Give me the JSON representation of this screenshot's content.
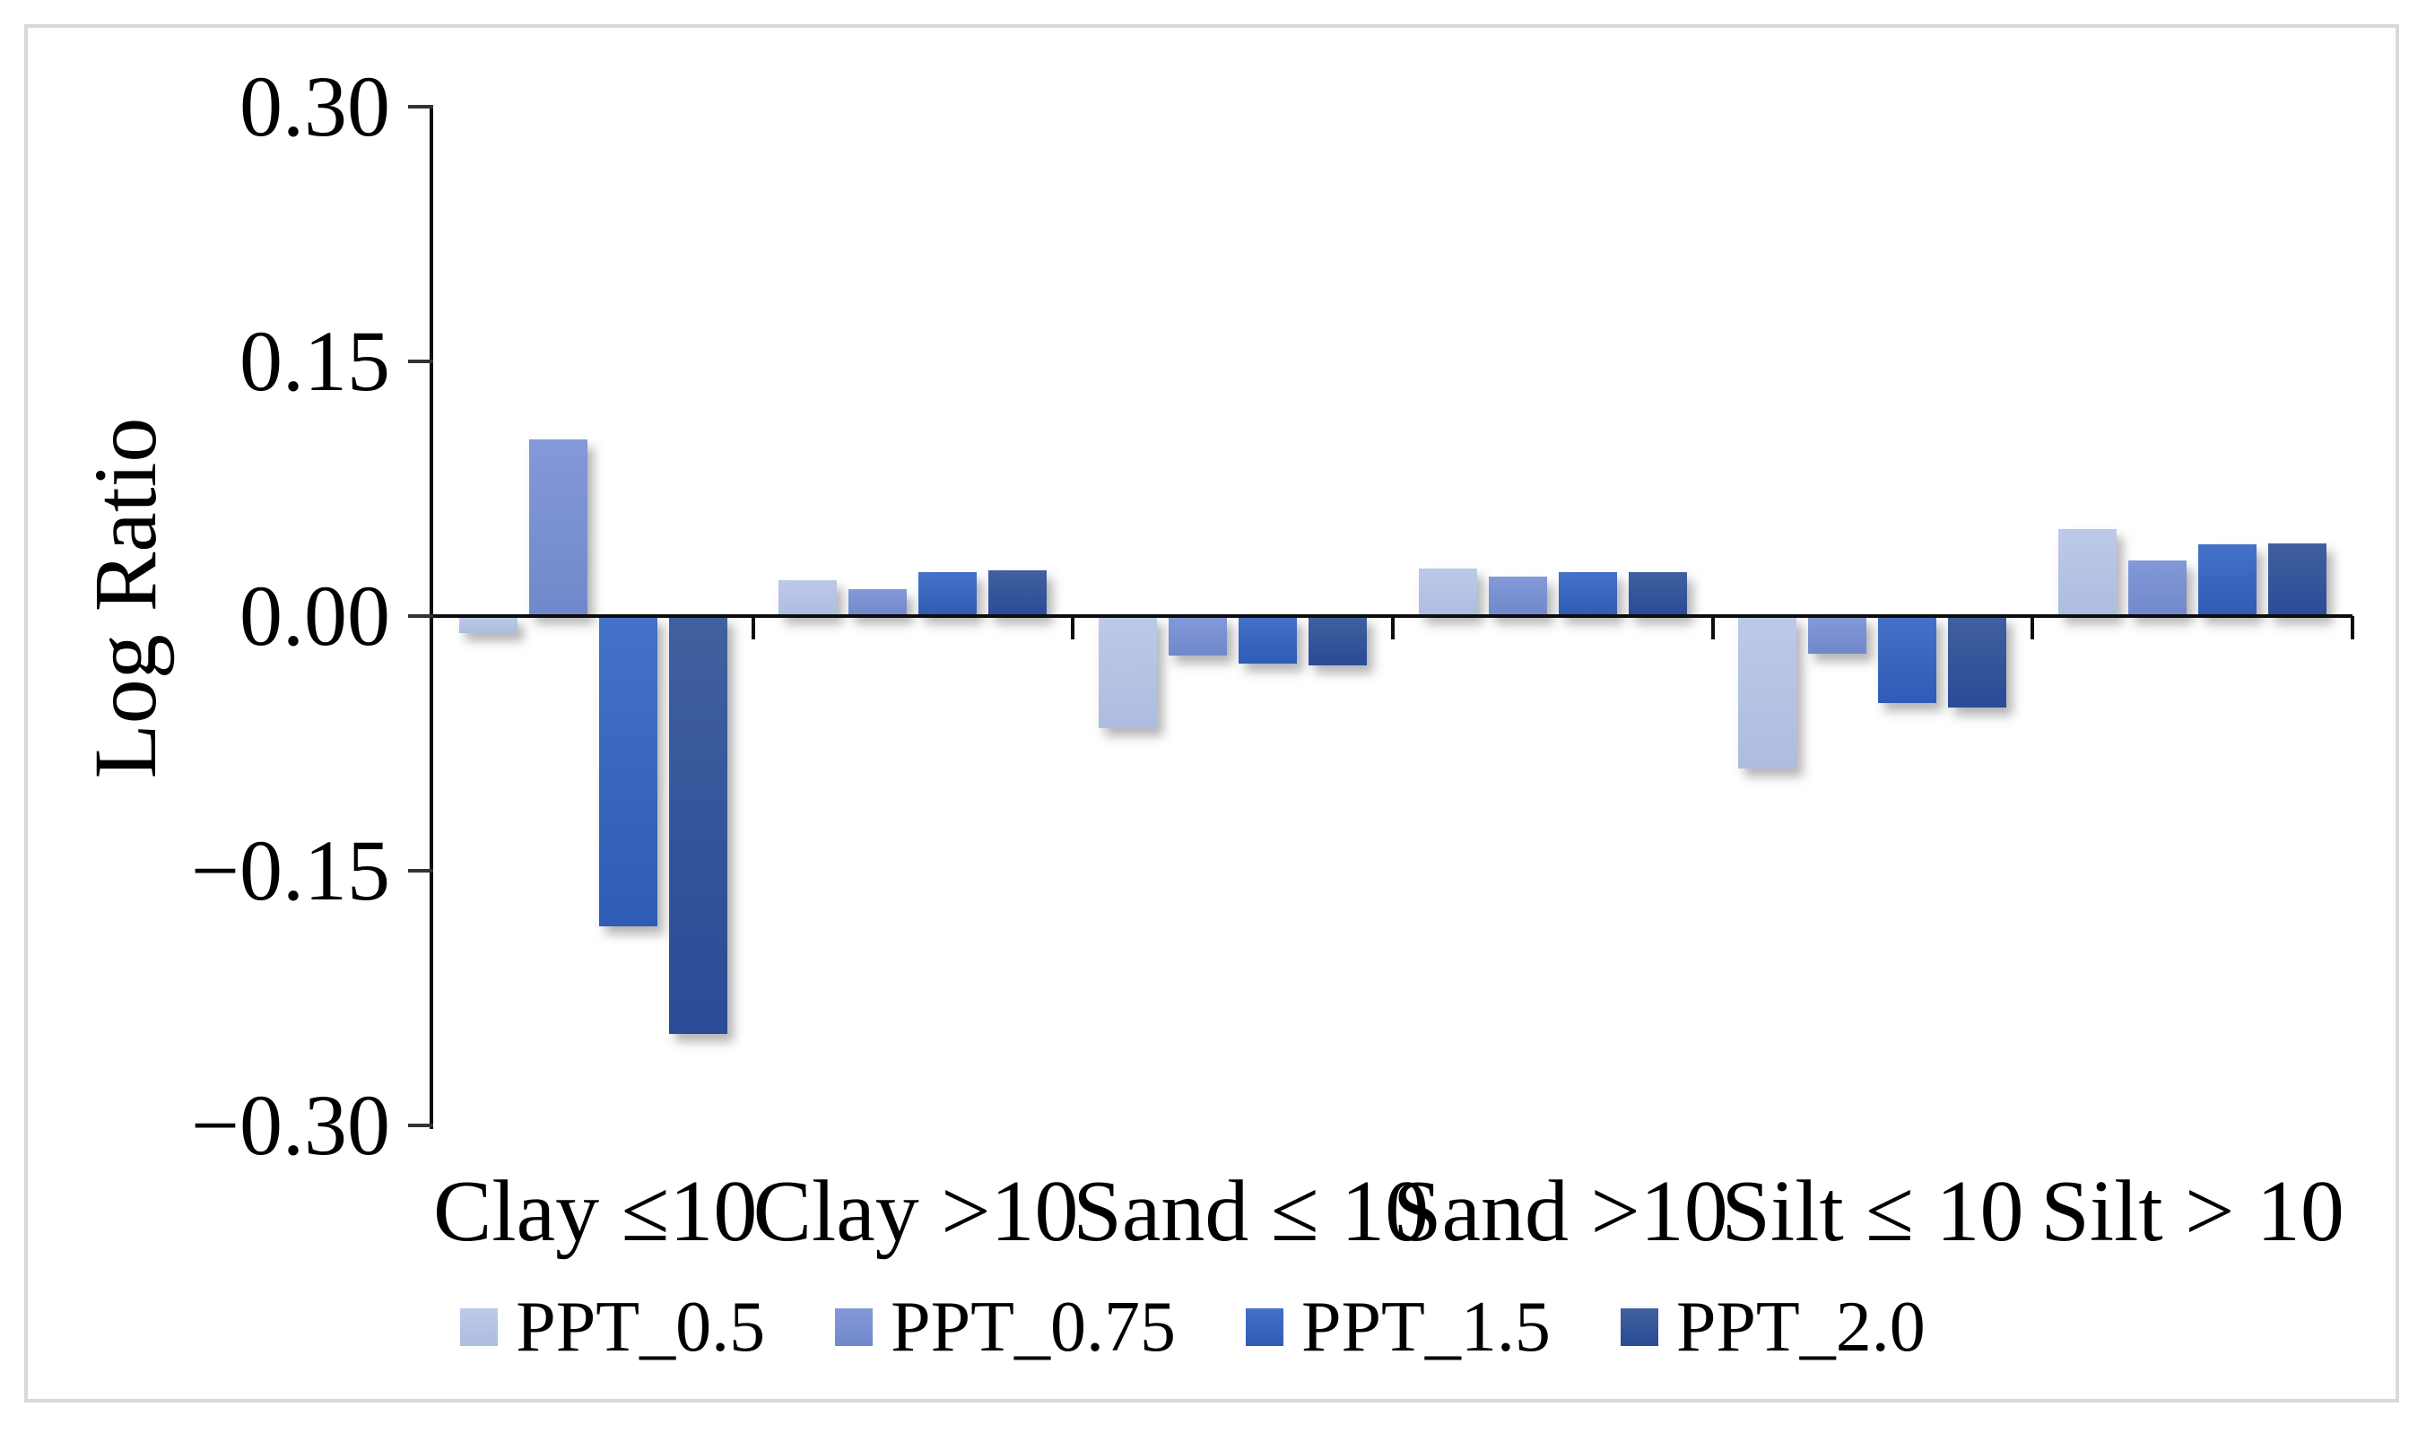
{
  "chart_data": {
    "type": "bar",
    "title": "",
    "ylabel": "Log Ratio",
    "xlabel": "",
    "categories": [
      "Clay ≤10",
      "Clay >10",
      "Sand ≤ 10",
      "Sand >10",
      "Silt ≤ 10",
      "Silt > 10"
    ],
    "series": [
      {
        "name": "PPT_0.5",
        "color": "#b5c3e5",
        "color_top": "#bdc9ea",
        "color_bottom": "#adbcdf",
        "values": [
          -0.01,
          0.021,
          -0.066,
          0.028,
          -0.09,
          0.051
        ]
      },
      {
        "name": "PPT_0.75",
        "color": "#7a90d2",
        "color_top": "#8399d8",
        "color_bottom": "#7088cb",
        "values": [
          0.104,
          0.016,
          -0.023,
          0.023,
          -0.022,
          0.033
        ]
      },
      {
        "name": "PPT_1.5",
        "color": "#3967bf",
        "color_top": "#4472c8",
        "color_bottom": "#2e5cb6",
        "values": [
          -0.183,
          0.026,
          -0.028,
          0.026,
          -0.051,
          0.042
        ]
      },
      {
        "name": "PPT_2.0",
        "color": "#31549c",
        "color_top": "#40609f",
        "color_bottom": "#2a4b96",
        "values": [
          -0.246,
          0.027,
          -0.029,
          0.026,
          -0.054,
          0.043
        ]
      }
    ],
    "y_ticks": [
      {
        "label": "0.30",
        "value": 0.3
      },
      {
        "label": "0.15",
        "value": 0.15
      },
      {
        "label": "0.00",
        "value": 0.0
      },
      {
        "label": "−0.15",
        "value": -0.15
      },
      {
        "label": "−0.30",
        "value": -0.3
      }
    ],
    "ylim": [
      -0.3,
      0.3
    ],
    "grid": "off",
    "legend_position": "bottom",
    "axis_color": "#0d0d0d",
    "frame_color": "#d9d9d9"
  }
}
